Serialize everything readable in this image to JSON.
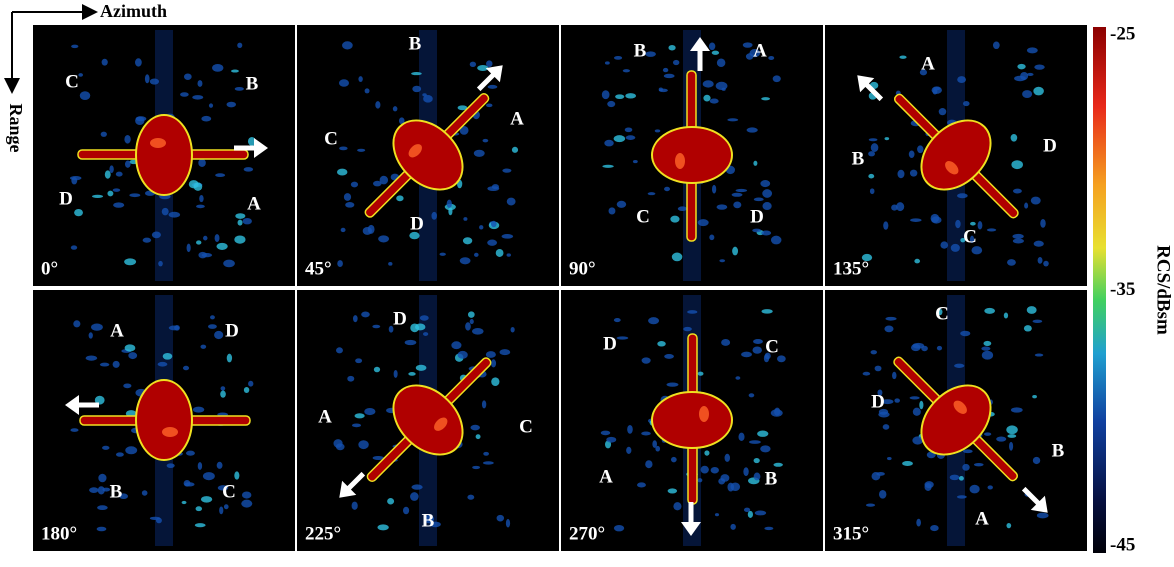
{
  "axes_indicator": {
    "azimuth": "Azimuth",
    "range": "Range"
  },
  "panels": [
    {
      "angle": "0°",
      "labels": [
        "C",
        "B",
        "D",
        "A"
      ]
    },
    {
      "angle": "45°",
      "labels": [
        "B",
        "A",
        "C",
        "D"
      ]
    },
    {
      "angle": "90°",
      "labels": [
        "B",
        "A",
        "C",
        "D"
      ]
    },
    {
      "angle": "135°",
      "labels": [
        "A",
        "B",
        "D",
        "C"
      ]
    },
    {
      "angle": "180°",
      "labels": [
        "A",
        "D",
        "B",
        "C"
      ]
    },
    {
      "angle": "225°",
      "labels": [
        "D",
        "A",
        "C",
        "B"
      ]
    },
    {
      "angle": "270°",
      "labels": [
        "D",
        "C",
        "A",
        "B"
      ]
    },
    {
      "angle": "315°",
      "labels": [
        "C",
        "D",
        "B",
        "A"
      ]
    }
  ],
  "colorbar": {
    "label": "RCS/dBsm",
    "ticks": [
      -25,
      -35,
      -45
    ]
  }
}
